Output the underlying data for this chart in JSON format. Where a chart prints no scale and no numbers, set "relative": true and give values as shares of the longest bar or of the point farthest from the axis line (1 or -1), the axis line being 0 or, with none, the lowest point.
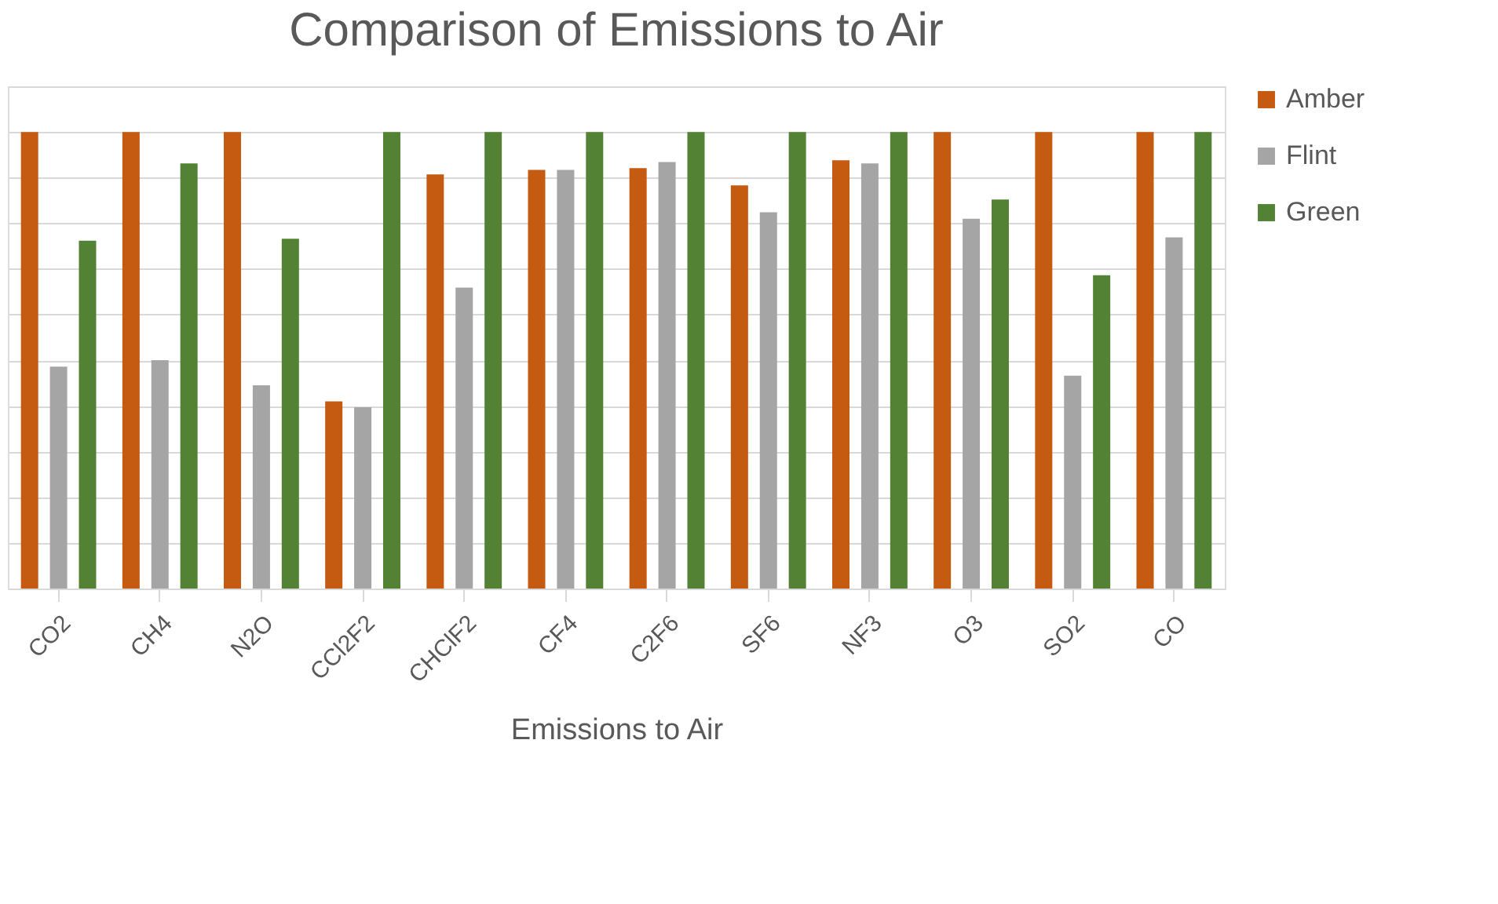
{
  "chart_data": {
    "type": "bar",
    "title": "Comparison of Emissions to Air",
    "xlabel": "Emissions to Air",
    "relative": true,
    "grid": "y",
    "legend": "right",
    "categories": [
      "CO2",
      "CH4",
      "N2O",
      "CCl2F2",
      "CHClF2",
      "CF4",
      "C2F6",
      "SF6",
      "NF3",
      "O3",
      "SO2",
      "CO"
    ],
    "series": [
      {
        "name": "Amber",
        "color": "#c55a11",
        "values": [
          1,
          1,
          1,
          0.41,
          0.907,
          0.917,
          0.921,
          0.883,
          0.938,
          1,
          1,
          1
        ]
      },
      {
        "name": "Flint",
        "color": "#a5a5a5",
        "values": [
          0.486,
          0.5,
          0.445,
          0.397,
          0.659,
          0.917,
          0.934,
          0.824,
          0.931,
          0.81,
          0.466,
          0.769
        ]
      },
      {
        "name": "Green",
        "color": "#548235",
        "values": [
          0.762,
          0.931,
          0.766,
          1,
          1,
          1,
          1,
          1,
          1,
          0.852,
          0.686,
          1
        ]
      }
    ]
  }
}
